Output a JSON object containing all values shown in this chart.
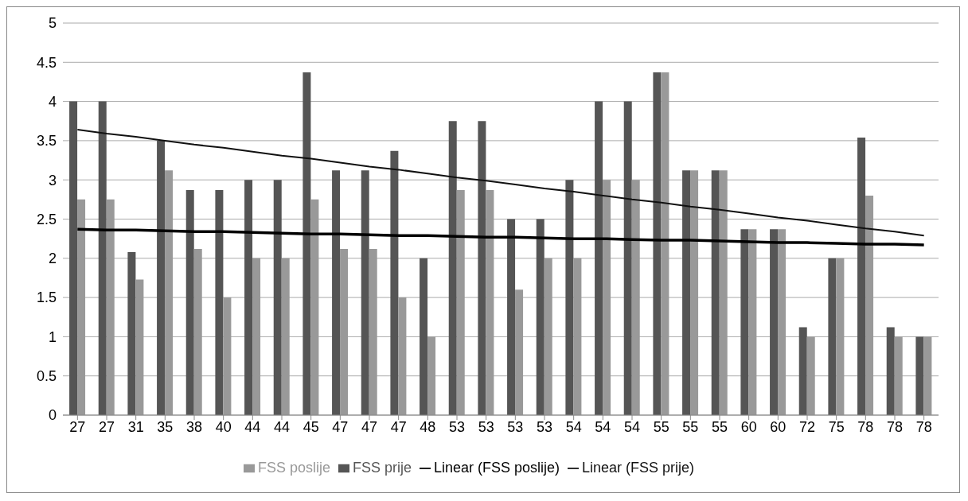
{
  "chart_data": {
    "type": "bar",
    "categories": [
      "27",
      "27",
      "31",
      "35",
      "38",
      "40",
      "44",
      "44",
      "45",
      "47",
      "47",
      "47",
      "48",
      "53",
      "53",
      "53",
      "53",
      "54",
      "54",
      "54",
      "55",
      "55",
      "55",
      "60",
      "60",
      "72",
      "75",
      "78",
      "78",
      "78"
    ],
    "series": [
      {
        "name": "FSS prije",
        "color": "#555555",
        "values": [
          4,
          4,
          2.08,
          3.5,
          2.87,
          2.87,
          3,
          3,
          4.37,
          3.12,
          3.12,
          3.37,
          2,
          3.75,
          3.75,
          2.5,
          2.5,
          3,
          4,
          4,
          4.37,
          3.12,
          3.12,
          2.37,
          2.37,
          1.12,
          2,
          3.54,
          1.12,
          1
        ]
      },
      {
        "name": "FSS poslije",
        "color": "#999999",
        "values": [
          2.75,
          2.75,
          1.73,
          3.12,
          2.12,
          1.5,
          2,
          2,
          2.75,
          2.12,
          2.12,
          1.5,
          1,
          2.87,
          2.87,
          1.6,
          2,
          2,
          3,
          3,
          4.37,
          3.12,
          3.12,
          2.37,
          2.37,
          1,
          2,
          2.8,
          1,
          1
        ]
      },
      {
        "name": "Linear (FSS prije)",
        "type": "line",
        "color": "#111111",
        "values": [
          3.64,
          3.59,
          3.55,
          3.5,
          3.45,
          3.41,
          3.36,
          3.31,
          3.27,
          3.22,
          3.17,
          3.13,
          3.08,
          3.03,
          2.99,
          2.94,
          2.89,
          2.85,
          2.8,
          2.75,
          2.71,
          2.66,
          2.62,
          2.57,
          2.52,
          2.48,
          2.43,
          2.38,
          2.34,
          2.29
        ]
      },
      {
        "name": "Linear (FSS poslije)",
        "type": "line",
        "color": "#000000",
        "values": [
          2.37,
          2.36,
          2.36,
          2.35,
          2.34,
          2.34,
          2.33,
          2.32,
          2.31,
          2.31,
          2.3,
          2.29,
          2.29,
          2.28,
          2.27,
          2.27,
          2.26,
          2.25,
          2.25,
          2.24,
          2.23,
          2.23,
          2.22,
          2.21,
          2.2,
          2.2,
          2.19,
          2.18,
          2.18,
          2.17
        ]
      }
    ],
    "ylim": [
      0,
      5
    ],
    "yticks": [
      0,
      0.5,
      1,
      1.5,
      2,
      2.5,
      3,
      3.5,
      4,
      4.5,
      5
    ],
    "grid": "y",
    "legend": "bottom",
    "marker": "none"
  }
}
